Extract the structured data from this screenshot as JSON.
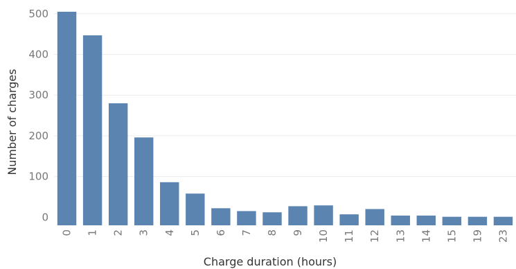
{
  "chart_data": {
    "type": "bar",
    "title": "",
    "xlabel": "Charge duration (hours)",
    "ylabel": "Number of charges",
    "categories": [
      "0",
      "1",
      "2",
      "3",
      "4",
      "5",
      "6",
      "7",
      "8",
      "9",
      "10",
      "11",
      "12",
      "13",
      "14",
      "15",
      "19",
      "23"
    ],
    "values": [
      505,
      447,
      280,
      196,
      86,
      58,
      22,
      15,
      12,
      27,
      29,
      7,
      20,
      4,
      4,
      1,
      1,
      1
    ],
    "ylim": [
      -20,
      510
    ],
    "yticks": [
      0,
      100,
      200,
      300,
      400,
      500
    ],
    "grid": true,
    "colors": {
      "bar": "#5b84b1"
    }
  }
}
